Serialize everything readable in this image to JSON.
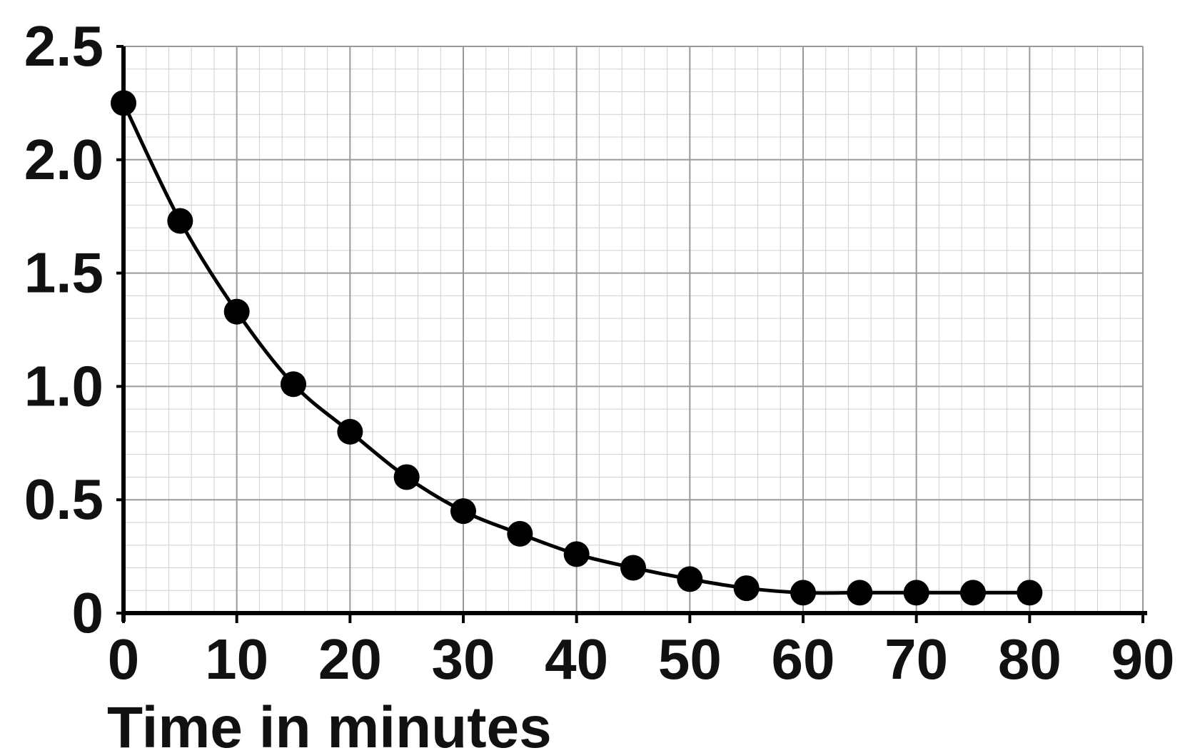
{
  "chart_data": {
    "type": "line",
    "title": "",
    "xlabel": "Time in minutes",
    "ylabel": "",
    "xlim": [
      0,
      90
    ],
    "ylim": [
      0,
      2.5
    ],
    "x_ticks": [
      0,
      10,
      20,
      30,
      40,
      50,
      60,
      70,
      80,
      90
    ],
    "x_tick_labels": [
      "0",
      "10",
      "20",
      "30",
      "40",
      "50",
      "60",
      "70",
      "80",
      "90"
    ],
    "y_ticks": [
      0,
      0.5,
      1.0,
      1.5,
      2.0,
      2.5
    ],
    "y_tick_labels": [
      "0",
      "0.5",
      "1.0",
      "1.5",
      "2.0",
      "2.5"
    ],
    "grid": true,
    "legend": "none",
    "colors": {
      "line": "#000000",
      "marker": "#000000",
      "grid_major": "#9a9a9a",
      "grid_minor": "#cfcfcf"
    },
    "series": [
      {
        "x": [
          0,
          5,
          10,
          15,
          20,
          25,
          30,
          35,
          40,
          45,
          50,
          55,
          60,
          65,
          70,
          75,
          80
        ],
        "y": [
          2.25,
          1.73,
          1.33,
          1.01,
          0.8,
          0.6,
          0.45,
          0.35,
          0.26,
          0.2,
          0.15,
          0.11,
          0.09,
          0.09,
          0.09,
          0.09,
          0.09
        ]
      }
    ]
  }
}
